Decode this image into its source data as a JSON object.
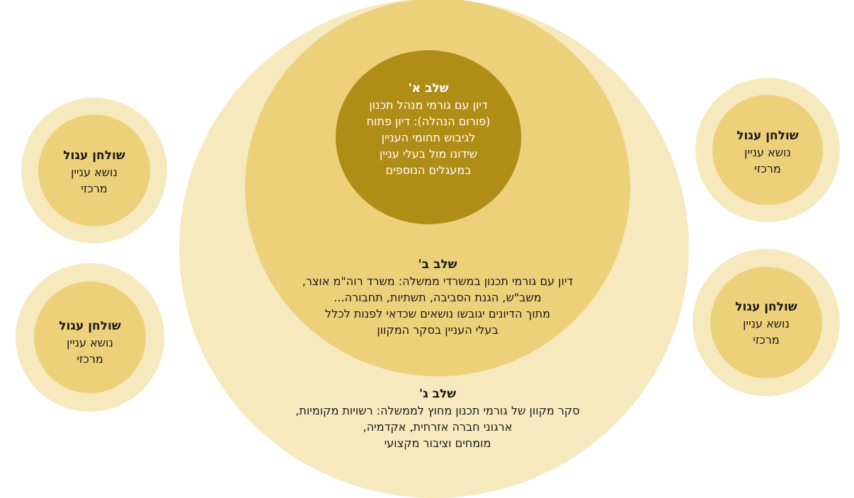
{
  "stage_a": {
    "title": "שלב א'",
    "lines": [
      "דיון עם גורמי מנהל תכנון",
      "(פורום הנהלה): דיון פתוח",
      "לגיבוש תחומי העניין",
      "שידונו מול בעלי עניין",
      "במעגלים הנוספים"
    ]
  },
  "stage_b": {
    "title": "שלב ב'",
    "lines": [
      "דיון עם גורמי תכנון במשרדי ממשלה: משרד רוה\"מ אוצר,",
      "משב\"ש, הגנת הסביבה, תשתיות, תחבורה...",
      "מתוך הדיונים  יגובשו נושאים שכדאי לפנות לכלל",
      "בעלי העניין בסקר המקוון"
    ]
  },
  "stage_c": {
    "title": "שלב ג'",
    "lines": [
      "סקר מקוון של גורמי תכנון מחוץ לממשלה: רשויות מקומיות,",
      "ארגוני חברה אזרחית, אקדמיה,",
      "מומחים וציבור מקצועי"
    ]
  },
  "round_tables": [
    {
      "title": "שולחן עגול",
      "line1": "נושא עניין",
      "line2": "מרכזי"
    },
    {
      "title": "שולחן עגול",
      "line1": "נושא עניין",
      "line2": "מרכזי"
    },
    {
      "title": "שולחן עגול",
      "line1": "נושא עניין",
      "line2": "מרכזי"
    },
    {
      "title": "שולחן עגול",
      "line1": "נושא עניין",
      "line2": "מרכזי"
    }
  ],
  "colors": {
    "halo": "#f6e9be",
    "mid": "#edd07a",
    "core": "#b08d16"
  }
}
